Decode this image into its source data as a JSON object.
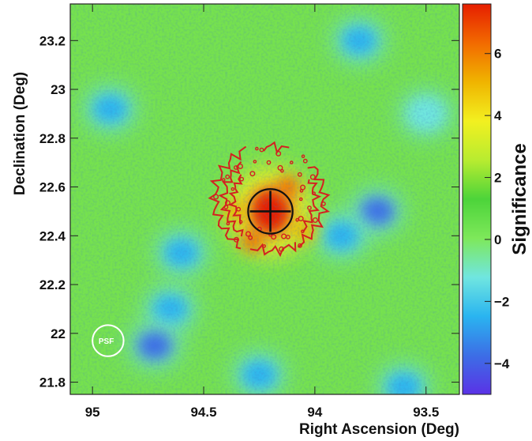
{
  "chart_data": {
    "type": "heatmap",
    "title": "",
    "xlabel": "Right Ascension (Deg)",
    "ylabel": "Declination (Deg)",
    "xlim": [
      95.1,
      93.35
    ],
    "ylim": [
      21.75,
      23.35
    ],
    "x_reversed": true,
    "x_ticks": [
      95,
      94.5,
      94,
      93.5
    ],
    "x_tick_labels": [
      "95",
      "94.5",
      "94",
      "93.5"
    ],
    "y_ticks": [
      21.8,
      22,
      22.2,
      22.4,
      22.6,
      22.8,
      23,
      23.2
    ],
    "y_tick_labels": [
      "21.8",
      "22",
      "22.2",
      "22.4",
      "22.6",
      "22.8",
      "23",
      "23.2"
    ],
    "colorbar": {
      "label": "Significance",
      "range": [
        -5,
        7.6
      ],
      "ticks": [
        -4,
        -2,
        0,
        2,
        4,
        6
      ],
      "tick_labels": [
        "−4",
        "−2",
        "0",
        "2",
        "4",
        "6"
      ],
      "colormap": [
        "#5a32e6",
        "#3c6ee6",
        "#2ab4f0",
        "#70e6e0",
        "#7ee85a",
        "#4cd43a",
        "#b8ec30",
        "#f2f020",
        "#f0b400",
        "#f26a00",
        "#e61e00"
      ]
    },
    "significance_peaks": [
      {
        "ra": 94.2,
        "dec": 22.5,
        "value": 7.2
      },
      {
        "ra": 94.28,
        "dec": 22.38,
        "value": 6.0
      },
      {
        "ra": 94.12,
        "dec": 22.6,
        "value": 5.8
      },
      {
        "ra": 94.36,
        "dec": 22.5,
        "value": 5.0
      },
      {
        "ra": 94.05,
        "dec": 22.42,
        "value": 4.8
      }
    ],
    "negative_regions": [
      {
        "ra": 93.72,
        "dec": 22.5,
        "value": -3.5
      },
      {
        "ra": 93.88,
        "dec": 22.4,
        "value": -2.5
      },
      {
        "ra": 94.65,
        "dec": 22.1,
        "value": -3.0
      },
      {
        "ra": 94.72,
        "dec": 21.95,
        "value": -3.5
      },
      {
        "ra": 94.92,
        "dec": 22.92,
        "value": -2.5
      },
      {
        "ra": 93.6,
        "dec": 21.78,
        "value": -3.0
      },
      {
        "ra": 94.25,
        "dec": 21.83,
        "value": -2.0
      },
      {
        "ra": 93.8,
        "dec": 23.2,
        "value": -2.0
      },
      {
        "ra": 94.6,
        "dec": 22.33,
        "value": -2.0
      },
      {
        "ra": 93.5,
        "dec": 22.9,
        "value": -1.5
      }
    ],
    "source_position": {
      "ra": 94.2,
      "dec": 22.5,
      "marker": "cross",
      "circle_radius_deg": 0.1
    },
    "psf_circle": {
      "label": "PSF",
      "center": {
        "ra": 94.93,
        "dec": 21.97
      },
      "radius_deg": 0.07
    },
    "contours": {
      "color": "#d42020",
      "shape": "partial shell",
      "center": {
        "ra": 94.2,
        "dec": 22.55
      },
      "radius_deg": 0.25
    },
    "grid": false,
    "legend": "none"
  }
}
